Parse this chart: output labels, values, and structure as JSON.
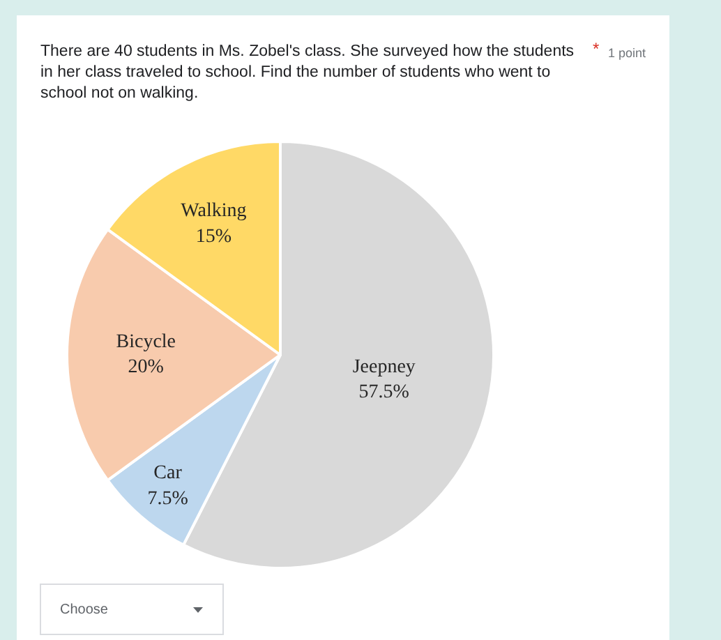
{
  "chart_data": {
    "type": "pie",
    "title": "There are 40 students in Ms. Zobel's class. She surveyed how the students in her class traveled to school. Find the number of students who went to school not on walking.",
    "categories": [
      "Jeepney",
      "Car",
      "Bicycle",
      "Walking"
    ],
    "values": [
      57.5,
      7.5,
      20,
      15
    ],
    "value_labels": [
      "57.5%",
      "7.5%",
      "20%",
      "15%"
    ],
    "colors": [
      "#d9d9d9",
      "#bdd7ee",
      "#f8cbad",
      "#ffd966"
    ],
    "annotations": [
      "*",
      "1 point",
      "Choose"
    ]
  }
}
